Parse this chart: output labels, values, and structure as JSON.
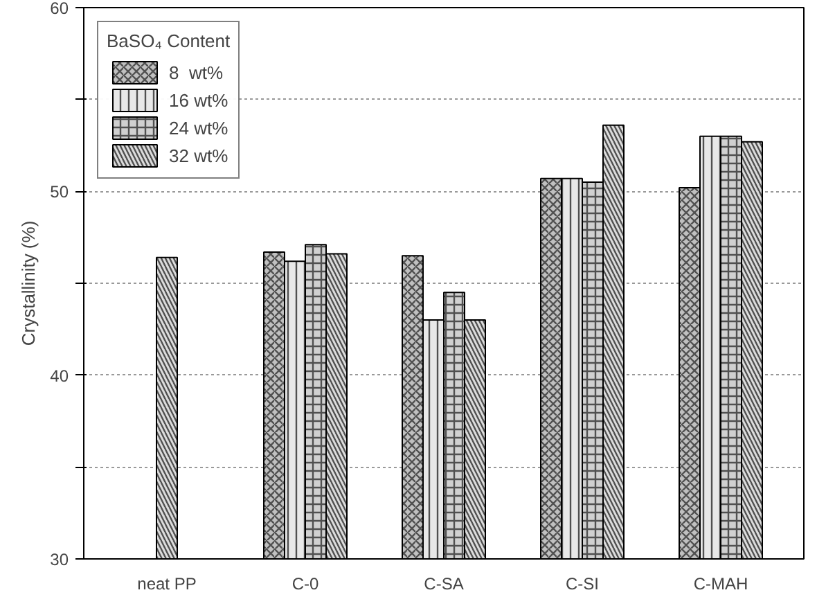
{
  "chart_data": {
    "type": "bar",
    "ylabel": "Crystallinity (%)",
    "legend_title": "BaSO₄ Content",
    "categories": [
      "neat PP",
      "C-0",
      "C-SA",
      "C-SI",
      "C-MAH"
    ],
    "series": [
      {
        "name": "8  wt%",
        "color": "#c0c0c0",
        "values": [
          null,
          46.7,
          46.5,
          50.7,
          50.2
        ]
      },
      {
        "name": "16 wt%",
        "color": "#e8e8e8",
        "values": [
          null,
          46.2,
          43.0,
          50.7,
          53.0
        ]
      },
      {
        "name": "24 wt%",
        "color": "#d0d0d0",
        "values": [
          null,
          47.1,
          44.5,
          50.5,
          53.0
        ]
      },
      {
        "name": "32 wt%",
        "color": "#dcdcdc",
        "values": [
          46.4,
          46.6,
          43.0,
          53.6,
          52.7
        ]
      }
    ],
    "ylim": [
      30,
      60
    ],
    "yticks": [
      30,
      {
        "value": 35,
        "label": null
      },
      40,
      {
        "value": 45,
        "label": null
      },
      50,
      {
        "value": 55,
        "label": null
      },
      60
    ],
    "grid": "y",
    "legend": "top left"
  }
}
